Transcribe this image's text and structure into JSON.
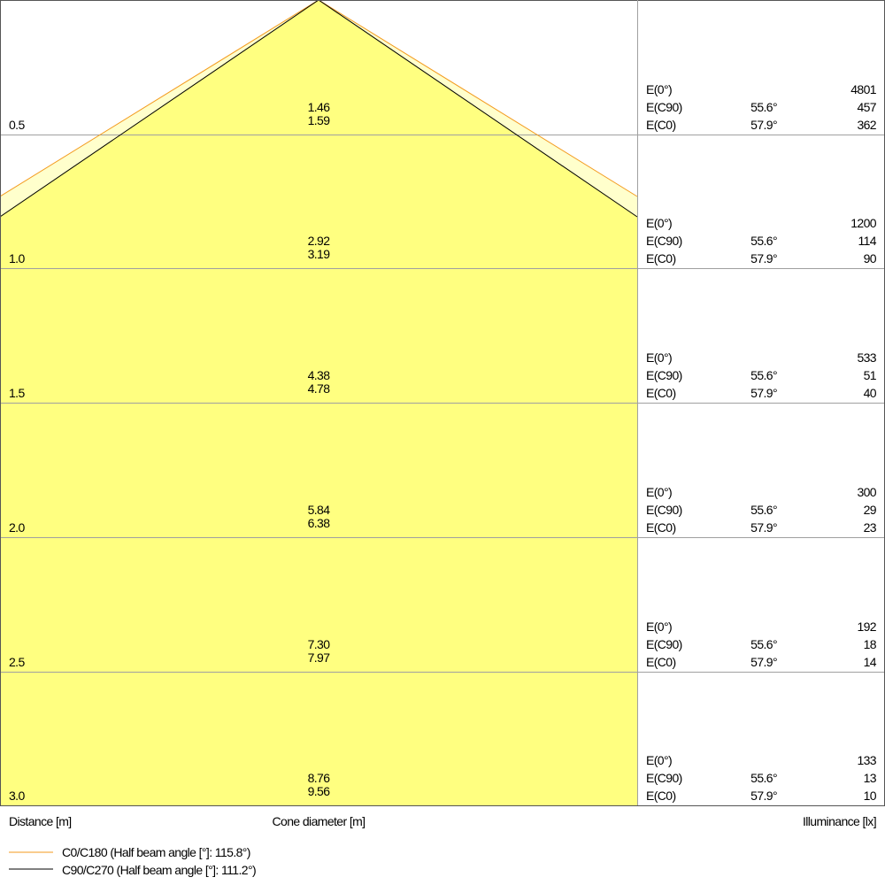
{
  "chart_data": {
    "type": "cone-diagram",
    "distance_label": "Distance [m]",
    "diameter_label": "Cone diameter [m]",
    "illuminance_label": "Illuminance [lx]",
    "colors": {
      "c0_line": "#f39a1e",
      "c90_line": "#000000",
      "fill": "#ffff80",
      "fill_outer": "#ffffcc",
      "grid": "#a0a0a0"
    },
    "legend": [
      {
        "name": "C0/C180 (Half beam angle [°]: 115.8°)",
        "color": "#f39a1e"
      },
      {
        "name": "C90/C270 (Half beam angle [°]: 111.2°)",
        "color": "#000000"
      }
    ],
    "rows": [
      {
        "distance": "0.5",
        "diameter_c90": "1.46",
        "diameter_c0": "1.59",
        "e0_label": "E(0°)",
        "e0": "4801",
        "ec90_label": "E(C90)",
        "ec90_angle": "55.6°",
        "ec90": "457",
        "ec0_label": "E(C0)",
        "ec0_angle": "57.9°",
        "ec0": "362"
      },
      {
        "distance": "1.0",
        "diameter_c90": "2.92",
        "diameter_c0": "3.19",
        "e0_label": "E(0°)",
        "e0": "1200",
        "ec90_label": "E(C90)",
        "ec90_angle": "55.6°",
        "ec90": "114",
        "ec0_label": "E(C0)",
        "ec0_angle": "57.9°",
        "ec0": "90"
      },
      {
        "distance": "1.5",
        "diameter_c90": "4.38",
        "diameter_c0": "4.78",
        "e0_label": "E(0°)",
        "e0": "533",
        "ec90_label": "E(C90)",
        "ec90_angle": "55.6°",
        "ec90": "51",
        "ec0_label": "E(C0)",
        "ec0_angle": "57.9°",
        "ec0": "40"
      },
      {
        "distance": "2.0",
        "diameter_c90": "5.84",
        "diameter_c0": "6.38",
        "e0_label": "E(0°)",
        "e0": "300",
        "ec90_label": "E(C90)",
        "ec90_angle": "55.6°",
        "ec90": "29",
        "ec0_label": "E(C0)",
        "ec0_angle": "57.9°",
        "ec0": "23"
      },
      {
        "distance": "2.5",
        "diameter_c90": "7.30",
        "diameter_c0": "7.97",
        "e0_label": "E(0°)",
        "e0": "192",
        "ec90_label": "E(C90)",
        "ec90_angle": "55.6°",
        "ec90": "18",
        "ec0_label": "E(C0)",
        "ec0_angle": "57.9°",
        "ec0": "14"
      },
      {
        "distance": "3.0",
        "diameter_c90": "8.76",
        "diameter_c0": "9.56",
        "e0_label": "E(0°)",
        "e0": "133",
        "ec90_label": "E(C90)",
        "ec90_angle": "55.6°",
        "ec90": "13",
        "ec0_label": "E(C0)",
        "ec0_angle": "57.9°",
        "ec0": "10"
      }
    ]
  }
}
